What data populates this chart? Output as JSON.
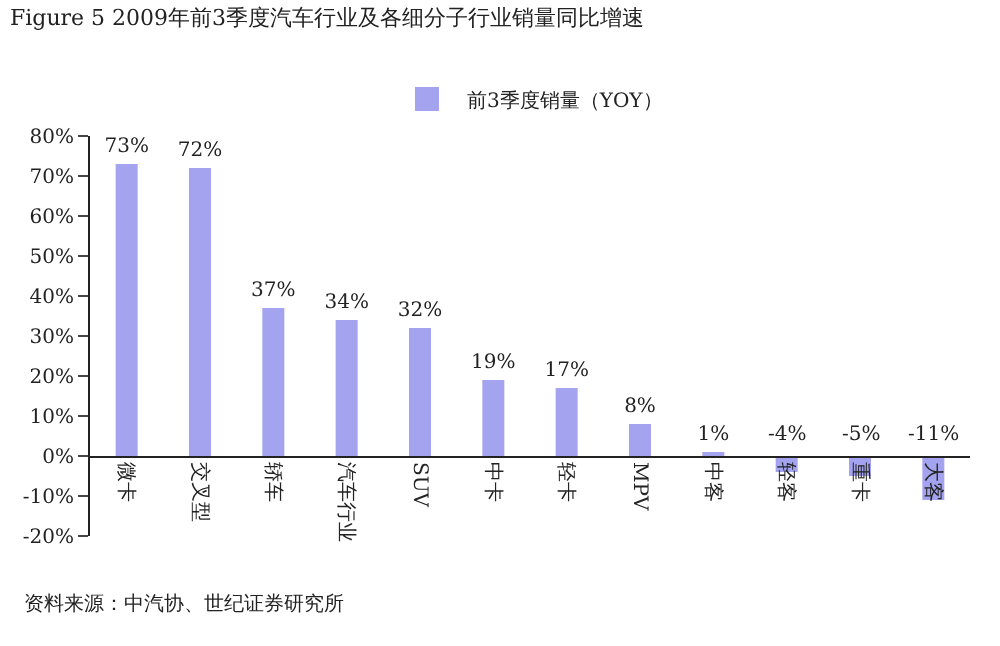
{
  "chart_data": {
    "type": "bar",
    "title": "Figure 5 2009年前3季度汽车行业及各细分子行业销量同比增速",
    "categories": [
      "微卡",
      "交叉型",
      "轿车",
      "汽车行业",
      "SUV",
      "中卡",
      "轻卡",
      "MPV",
      "中客",
      "轻客",
      "重卡",
      "大客"
    ],
    "series": [
      {
        "name": "前3季度销量（YOY）",
        "color": "#a3a3f0",
        "values": [
          73,
          72,
          37,
          34,
          32,
          19,
          17,
          8,
          1,
          -4,
          -5,
          -11
        ],
        "value_labels": [
          "73%",
          "72%",
          "37%",
          "34%",
          "32%",
          "19%",
          "17%",
          "8%",
          "1%",
          "-4%",
          "-5%",
          "-11%"
        ]
      }
    ],
    "ylim": [
      -20,
      80
    ],
    "yticks": [
      {
        "value": -20,
        "label": "-20%"
      },
      {
        "value": -10,
        "label": "-10%"
      },
      {
        "value": 0,
        "label": "0%"
      },
      {
        "value": 10,
        "label": "10%"
      },
      {
        "value": 20,
        "label": "20%"
      },
      {
        "value": 30,
        "label": "30%"
      },
      {
        "value": 40,
        "label": "40%"
      },
      {
        "value": 50,
        "label": "50%"
      },
      {
        "value": 60,
        "label": "60%"
      },
      {
        "value": 70,
        "label": "70%"
      },
      {
        "value": 80,
        "label": "80%"
      }
    ],
    "legend": "top",
    "grid": false,
    "annotations": [
      "资料来源：中汽协、世纪证券研究所"
    ]
  }
}
